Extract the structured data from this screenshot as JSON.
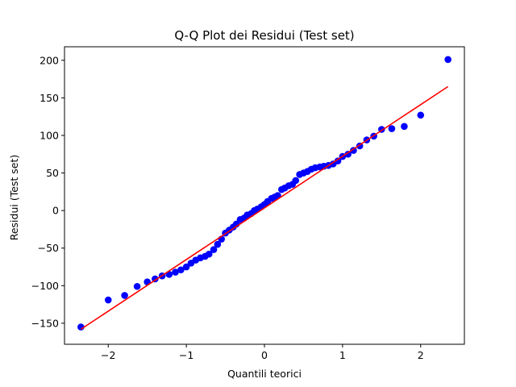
{
  "chart_data": {
    "type": "scatter",
    "title": "Q-Q Plot dei Residui (Test set)",
    "xlabel": "Quantili teorici",
    "ylabel": "Residui (Test set)",
    "xlim": [
      -2.56,
      2.56
    ],
    "ylim": [
      -178,
      218
    ],
    "xticks": [
      -2,
      -1,
      0,
      1,
      2
    ],
    "yticks": [
      -150,
      -100,
      -50,
      0,
      50,
      100,
      150,
      200
    ],
    "grid": false,
    "colors": {
      "points": "#0000ff",
      "fit_line": "#ff0000"
    },
    "series": [
      {
        "type": "scatter",
        "x": [
          -2.35,
          -2.0,
          -1.79,
          -1.63,
          -1.5,
          -1.4,
          -1.31,
          -1.22,
          -1.14,
          -1.07,
          -1.0,
          -0.94,
          -0.88,
          -0.82,
          -0.76,
          -0.71,
          -0.65,
          -0.6,
          -0.55,
          -0.5,
          -0.45,
          -0.4,
          -0.36,
          -0.31,
          -0.26,
          -0.22,
          -0.17,
          -0.13,
          -0.09,
          -0.04,
          0.0,
          0.04,
          0.09,
          0.13,
          0.17,
          0.22,
          0.26,
          0.31,
          0.36,
          0.4,
          0.45,
          0.5,
          0.55,
          0.6,
          0.65,
          0.71,
          0.76,
          0.82,
          0.88,
          0.94,
          1.0,
          1.07,
          1.14,
          1.22,
          1.31,
          1.4,
          1.5,
          1.63,
          1.79,
          2.0,
          2.35
        ],
        "y": [
          -155,
          -119,
          -113,
          -101,
          -95,
          -91,
          -87,
          -85,
          -82,
          -79,
          -75,
          -70,
          -66,
          -63,
          -61,
          -58,
          -52,
          -45,
          -38,
          -30,
          -26,
          -22,
          -18,
          -12,
          -10,
          -6,
          -4,
          0,
          2,
          5,
          8,
          12,
          16,
          18,
          20,
          28,
          30,
          33,
          35,
          40,
          48,
          50,
          52,
          55,
          57,
          58,
          59,
          60,
          62,
          66,
          72,
          75,
          80,
          86,
          94,
          99,
          108,
          109,
          112,
          127,
          201
        ]
      },
      {
        "type": "line",
        "x": [
          -2.35,
          2.35
        ],
        "y": [
          -158,
          165
        ]
      }
    ]
  }
}
